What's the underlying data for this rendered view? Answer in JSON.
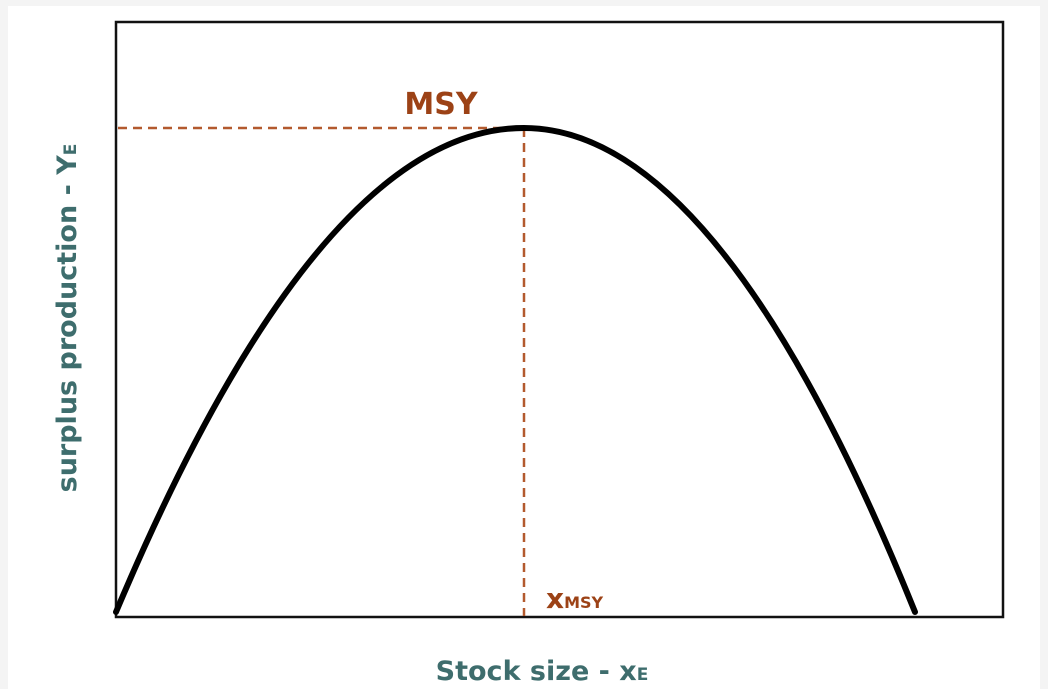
{
  "y_axis_label": {
    "text": "surplus production - Y",
    "subscript": "E"
  },
  "x_axis_label": {
    "text": "Stock size - x",
    "subscript": "E"
  },
  "peak_label": "MSY",
  "peak_x_label": {
    "text": "x",
    "subscript": "MSY"
  }
}
